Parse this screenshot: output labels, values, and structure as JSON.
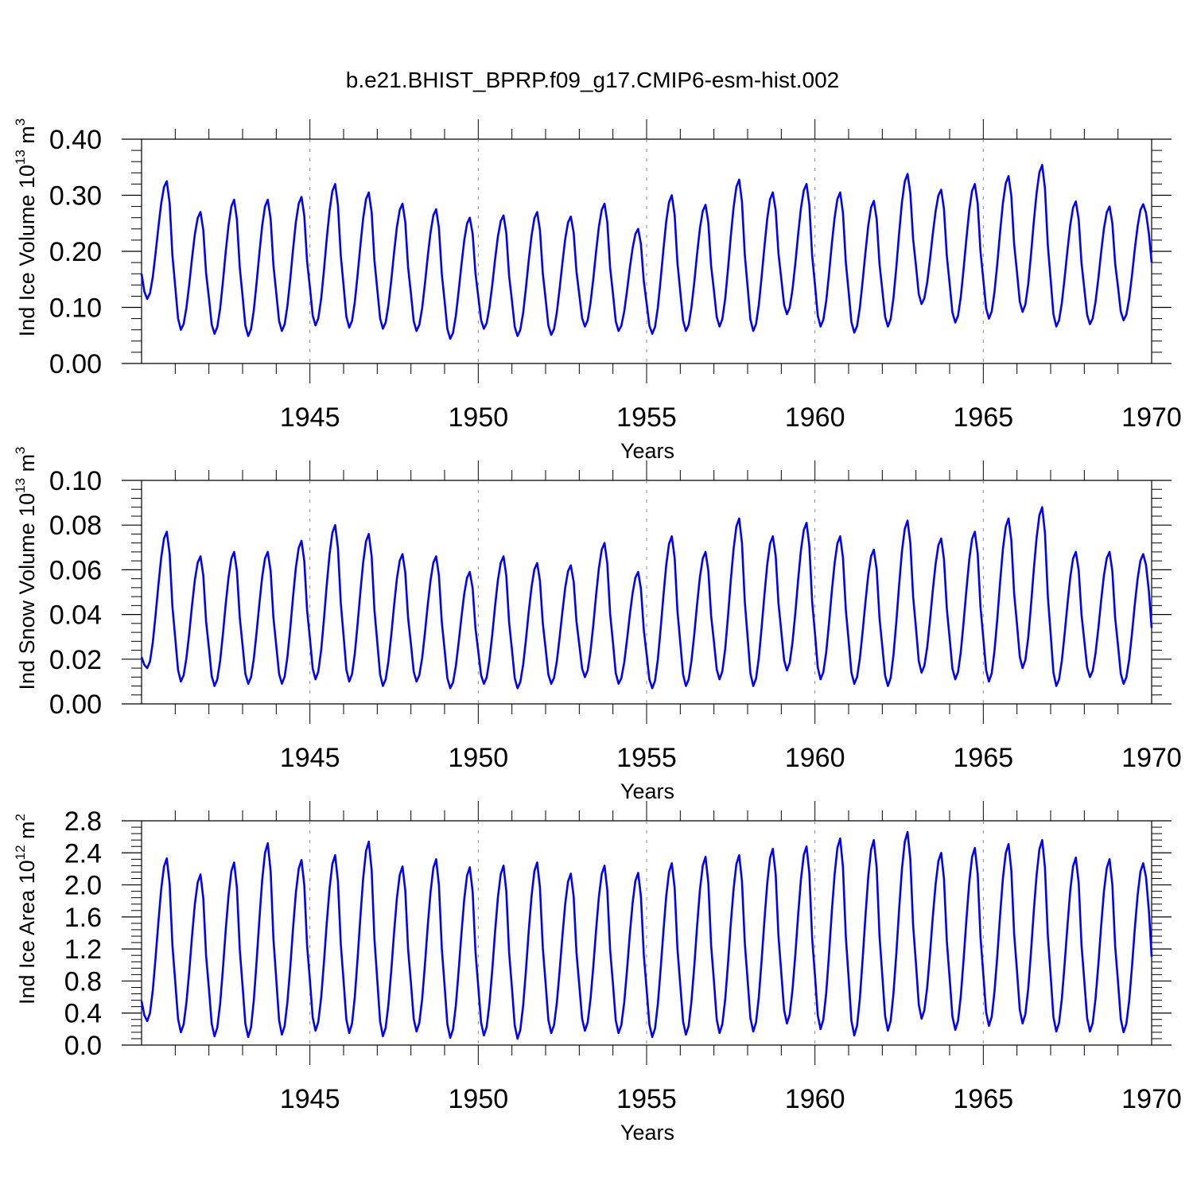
{
  "figure": {
    "title": "b.e21.BHIST_BPRP.f09_g17.CMIP6-esm-hist.002",
    "line_color": "#0000ff",
    "axis_color": "#000000",
    "grid_color": "#888888"
  },
  "chart_data": [
    {
      "type": "line",
      "ylabel_main": "Ind Ice Volume 10",
      "ylabel_sup": "13",
      "ylabel_unit": " m",
      "ylabel_unit_sup": "3",
      "xlabel": "Years",
      "xlim": [
        1940.0,
        1970.0
      ],
      "ylim": [
        0.0,
        0.4
      ],
      "ytick_values": [
        0.0,
        0.1,
        0.2,
        0.3,
        0.4
      ],
      "ytick_labels": [
        "0.00",
        "0.10",
        "0.20",
        "0.30",
        "0.40"
      ],
      "xtick_values": [
        1945,
        1950,
        1955,
        1960,
        1965,
        1970
      ],
      "xtick_labels": [
        "1945",
        "1950",
        "1955",
        "1960",
        "1965",
        "1970"
      ],
      "grid_x": true,
      "start_year": 1940.0,
      "step": 0.08333333,
      "mins": [
        0.115,
        0.06,
        0.053,
        0.049,
        0.058,
        0.068,
        0.064,
        0.062,
        0.058,
        0.044,
        0.062,
        0.049,
        0.051,
        0.066,
        0.058,
        0.053,
        0.058,
        0.066,
        0.058,
        0.088,
        0.066,
        0.055,
        0.066,
        0.106,
        0.073,
        0.08,
        0.092,
        0.066,
        0.07,
        0.077
      ],
      "maxs": [
        0.325,
        0.27,
        0.292,
        0.292,
        0.297,
        0.32,
        0.305,
        0.285,
        0.275,
        0.26,
        0.264,
        0.27,
        0.262,
        0.285,
        0.24,
        0.3,
        0.283,
        0.328,
        0.305,
        0.32,
        0.305,
        0.29,
        0.338,
        0.31,
        0.32,
        0.334,
        0.354,
        0.289,
        0.28,
        0.284
      ],
      "first": 0.16,
      "last": 0.18
    },
    {
      "type": "line",
      "ylabel_main": "Ind Snow Volume 10",
      "ylabel_sup": "13",
      "ylabel_unit": " m",
      "ylabel_unit_sup": "3",
      "xlabel": "Years",
      "xlim": [
        1940.0,
        1970.0
      ],
      "ylim": [
        0.0,
        0.1
      ],
      "ytick_values": [
        0.0,
        0.02,
        0.04,
        0.06,
        0.08,
        0.1
      ],
      "ytick_labels": [
        "0.00",
        "0.02",
        "0.04",
        "0.06",
        "0.08",
        "0.10"
      ],
      "xtick_values": [
        1945,
        1950,
        1955,
        1960,
        1965,
        1970
      ],
      "xtick_labels": [
        "1945",
        "1950",
        "1955",
        "1960",
        "1965",
        "1970"
      ],
      "grid_x": true,
      "start_year": 1940.0,
      "step": 0.08333333,
      "mins": [
        0.016,
        0.01,
        0.008,
        0.009,
        0.009,
        0.011,
        0.01,
        0.008,
        0.01,
        0.007,
        0.009,
        0.007,
        0.009,
        0.012,
        0.009,
        0.007,
        0.008,
        0.011,
        0.008,
        0.015,
        0.011,
        0.009,
        0.008,
        0.014,
        0.011,
        0.01,
        0.016,
        0.008,
        0.012,
        0.009
      ],
      "maxs": [
        0.077,
        0.066,
        0.068,
        0.068,
        0.073,
        0.08,
        0.076,
        0.067,
        0.066,
        0.059,
        0.066,
        0.063,
        0.062,
        0.072,
        0.059,
        0.075,
        0.068,
        0.083,
        0.075,
        0.081,
        0.075,
        0.069,
        0.082,
        0.074,
        0.077,
        0.083,
        0.088,
        0.068,
        0.068,
        0.067
      ],
      "first": 0.021,
      "last": 0.034
    },
    {
      "type": "line",
      "ylabel_main": "Ind Ice Area 10",
      "ylabel_sup": "12",
      "ylabel_unit": " m",
      "ylabel_unit_sup": "2",
      "xlabel": "Years",
      "xlim": [
        1940.0,
        1970.0
      ],
      "ylim": [
        0.0,
        2.8
      ],
      "ytick_values": [
        0.0,
        0.4,
        0.8,
        1.2,
        1.6,
        2.0,
        2.4,
        2.8
      ],
      "ytick_labels": [
        "0.0",
        "0.4",
        "0.8",
        "1.2",
        "1.6",
        "2.0",
        "2.4",
        "2.8"
      ],
      "xtick_values": [
        1945,
        1950,
        1955,
        1960,
        1965,
        1970
      ],
      "xtick_labels": [
        "1945",
        "1950",
        "1955",
        "1960",
        "1965",
        "1970"
      ],
      "grid_x": true,
      "start_year": 1940.0,
      "step": 0.08333333,
      "mins": [
        0.3,
        0.16,
        0.11,
        0.1,
        0.13,
        0.18,
        0.15,
        0.11,
        0.17,
        0.09,
        0.12,
        0.08,
        0.15,
        0.18,
        0.15,
        0.1,
        0.13,
        0.15,
        0.17,
        0.27,
        0.2,
        0.12,
        0.18,
        0.33,
        0.19,
        0.24,
        0.27,
        0.17,
        0.17,
        0.16
      ],
      "maxs": [
        2.33,
        2.13,
        2.28,
        2.52,
        2.31,
        2.37,
        2.54,
        2.23,
        2.32,
        2.22,
        2.24,
        2.28,
        2.14,
        2.24,
        2.15,
        2.27,
        2.35,
        2.37,
        2.45,
        2.48,
        2.58,
        2.56,
        2.66,
        2.4,
        2.46,
        2.51,
        2.56,
        2.34,
        2.32,
        2.27
      ],
      "first": 0.55,
      "last": 1.1
    }
  ]
}
